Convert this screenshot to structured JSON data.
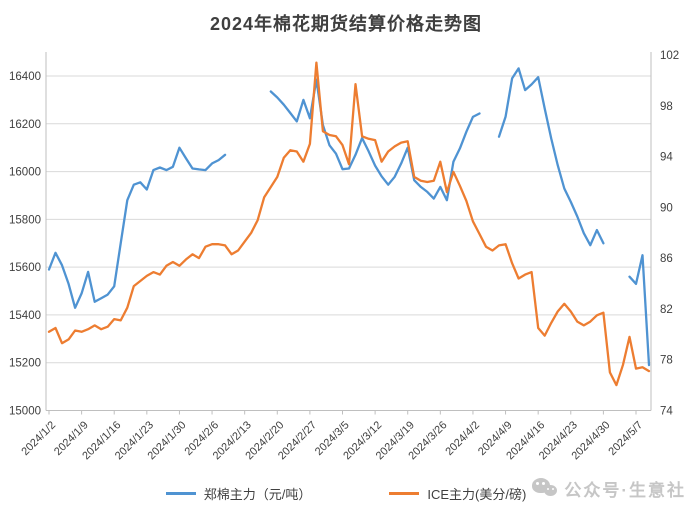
{
  "title": "2024年棉花期货结算价格走势图",
  "watermark": {
    "icon": "wechat-icon",
    "text": "公众号·生意社"
  },
  "colors": {
    "zheng_blue": "#4F93D2",
    "ice_orange": "#ED7D31",
    "gridline": "#D9D9D9",
    "axis_line": "#BFBFBF",
    "axis_text": "#404040",
    "watermark_gray": "#C6C6C6"
  },
  "chart_data": {
    "type": "line",
    "title": "2024年棉花期货结算价格走势图",
    "grid": true,
    "legend_position": "bottom",
    "y_left_axis": {
      "label": "郑棉主力（元/吨）",
      "min": 15000,
      "max": 16400,
      "step": 200,
      "ticks": [
        15000,
        15200,
        15400,
        15600,
        15800,
        16000,
        16200,
        16400
      ]
    },
    "y_right_axis": {
      "label": "ICE主力(美分/磅)",
      "min": 74,
      "max": 102,
      "step": 4,
      "ticks": [
        74,
        78,
        82,
        86,
        90,
        94,
        98,
        102
      ]
    },
    "x_tick_step": 5,
    "x_tick_labels": [
      "2024/1/2",
      "2024/1/9",
      "2024/1/16",
      "2024/1/23",
      "2024/1/30",
      "2024/2/6",
      "2024/2/13",
      "2024/2/20",
      "2024/2/27",
      "2024/3/5",
      "2024/3/12",
      "2024/3/19",
      "2024/3/26",
      "2024/4/2",
      "2024/4/9",
      "2024/4/16",
      "2024/4/23",
      "2024/4/30",
      "2024/5/7"
    ],
    "categories": [
      "2024/1/2",
      "2024/1/3",
      "2024/1/4",
      "2024/1/5",
      "2024/1/8",
      "2024/1/9",
      "2024/1/10",
      "2024/1/11",
      "2024/1/12",
      "2024/1/15",
      "2024/1/16",
      "2024/1/17",
      "2024/1/18",
      "2024/1/19",
      "2024/1/22",
      "2024/1/23",
      "2024/1/24",
      "2024/1/25",
      "2024/1/26",
      "2024/1/29",
      "2024/1/30",
      "2024/1/31",
      "2024/2/1",
      "2024/2/2",
      "2024/2/5",
      "2024/2/6",
      "2024/2/7",
      "2024/2/8",
      "2024/2/9",
      "2024/2/12",
      "2024/2/13",
      "2024/2/14",
      "2024/2/15",
      "2024/2/16",
      "2024/2/19",
      "2024/2/20",
      "2024/2/21",
      "2024/2/22",
      "2024/2/23",
      "2024/2/26",
      "2024/2/27",
      "2024/2/28",
      "2024/2/29",
      "2024/3/1",
      "2024/3/4",
      "2024/3/5",
      "2024/3/6",
      "2024/3/7",
      "2024/3/8",
      "2024/3/11",
      "2024/3/12",
      "2024/3/13",
      "2024/3/14",
      "2024/3/15",
      "2024/3/18",
      "2024/3/19",
      "2024/3/20",
      "2024/3/21",
      "2024/3/22",
      "2024/3/25",
      "2024/3/26",
      "2024/3/27",
      "2024/3/28",
      "2024/3/29",
      "2024/4/1",
      "2024/4/2",
      "2024/4/3",
      "2024/4/4",
      "2024/4/5",
      "2024/4/8",
      "2024/4/9",
      "2024/4/10",
      "2024/4/11",
      "2024/4/12",
      "2024/4/15",
      "2024/4/16",
      "2024/4/17",
      "2024/4/18",
      "2024/4/19",
      "2024/4/22",
      "2024/4/23",
      "2024/4/24",
      "2024/4/25",
      "2024/4/26",
      "2024/4/29",
      "2024/4/30",
      "2024/5/1",
      "2024/5/2",
      "2024/5/3",
      "2024/5/6",
      "2024/5/7",
      "2024/5/8",
      "2024/5/9"
    ],
    "series": [
      {
        "name": "郑棉主力（元/吨）",
        "axis": "left",
        "color": "#4F93D2",
        "values": [
          15590,
          15660,
          15608,
          15530,
          15430,
          15490,
          15580,
          15455,
          15470,
          15485,
          15520,
          15700,
          15880,
          15945,
          15955,
          15925,
          16006,
          16017,
          16006,
          16020,
          16100,
          16055,
          16013,
          16009,
          16006,
          16034,
          16048,
          16070,
          null,
          null,
          null,
          null,
          null,
          null,
          16335,
          16310,
          16280,
          16245,
          16210,
          16300,
          16223,
          16385,
          16195,
          16110,
          16075,
          16010,
          16013,
          16070,
          16140,
          16085,
          16025,
          15980,
          15945,
          15978,
          16034,
          16100,
          15964,
          15936,
          15915,
          15887,
          15936,
          15880,
          16041,
          16097,
          16167,
          16229,
          16243,
          null,
          null,
          16146,
          16230,
          16390,
          16432,
          16341,
          16365,
          16395,
          16264,
          16139,
          16027,
          15929,
          15873,
          15812,
          15742,
          15692,
          15755,
          15700,
          null,
          null,
          null,
          15560,
          15530,
          15650,
          15190
        ]
      },
      {
        "name": "ICE主力(美分/磅)",
        "axis": "right",
        "color": "#ED7D31",
        "values": [
          80.2,
          80.5,
          79.3,
          79.6,
          80.3,
          80.2,
          80.4,
          80.7,
          80.4,
          80.6,
          81.2,
          81.1,
          82.1,
          83.8,
          84.2,
          84.6,
          84.9,
          84.7,
          85.4,
          85.7,
          85.4,
          85.9,
          86.3,
          86.0,
          86.9,
          87.1,
          87.1,
          87.0,
          86.3,
          86.6,
          87.3,
          88.0,
          89.0,
          90.8,
          91.6,
          92.4,
          93.9,
          94.5,
          94.4,
          93.6,
          95.0,
          101.4,
          96.0,
          95.7,
          95.6,
          94.9,
          93.4,
          99.7,
          95.6,
          95.4,
          95.3,
          93.6,
          94.4,
          94.8,
          95.1,
          95.2,
          92.4,
          92.1,
          92.0,
          92.1,
          93.6,
          91.2,
          92.8,
          91.7,
          90.5,
          88.9,
          87.9,
          86.9,
          86.6,
          87.0,
          87.1,
          85.6,
          84.4,
          84.7,
          84.9,
          80.5,
          79.9,
          80.9,
          81.8,
          82.4,
          81.8,
          81.0,
          80.7,
          81.0,
          81.5,
          81.7,
          77.0,
          76.0,
          77.6,
          79.8,
          77.3,
          77.4,
          77.1
        ]
      }
    ]
  }
}
